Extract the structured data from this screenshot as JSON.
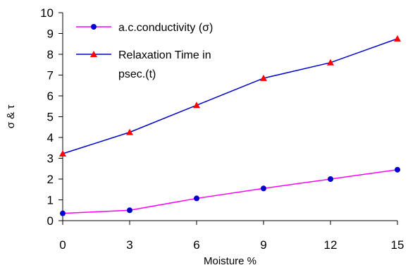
{
  "chart_data": {
    "type": "line",
    "xlabel": "Moisture %",
    "ylabel": "σ & τ",
    "xlim": [
      0,
      15
    ],
    "ylim": [
      0,
      10
    ],
    "x_ticks": [
      0,
      3,
      6,
      9,
      12,
      15
    ],
    "y_ticks": [
      0,
      1,
      2,
      3,
      4,
      5,
      6,
      7,
      8,
      9,
      10
    ],
    "grid": false,
    "legend_position": "top-left",
    "x": [
      0,
      3,
      6,
      9,
      12,
      15
    ],
    "series": [
      {
        "name": "a.c.conductivity (σ)",
        "values": [
          0.35,
          0.5,
          1.07,
          1.55,
          2.0,
          2.45
        ],
        "color": "#ff00ff",
        "marker": "circle",
        "marker_color": "#0000cc"
      },
      {
        "name": "Relaxation Time in psec.(t)",
        "name_lines": [
          "Relaxation Time in",
          "psec.(t)"
        ],
        "values": [
          3.22,
          4.25,
          5.55,
          6.85,
          7.6,
          8.75
        ],
        "color": "#0000cc",
        "marker": "triangle",
        "marker_color": "#ff0000"
      }
    ]
  }
}
